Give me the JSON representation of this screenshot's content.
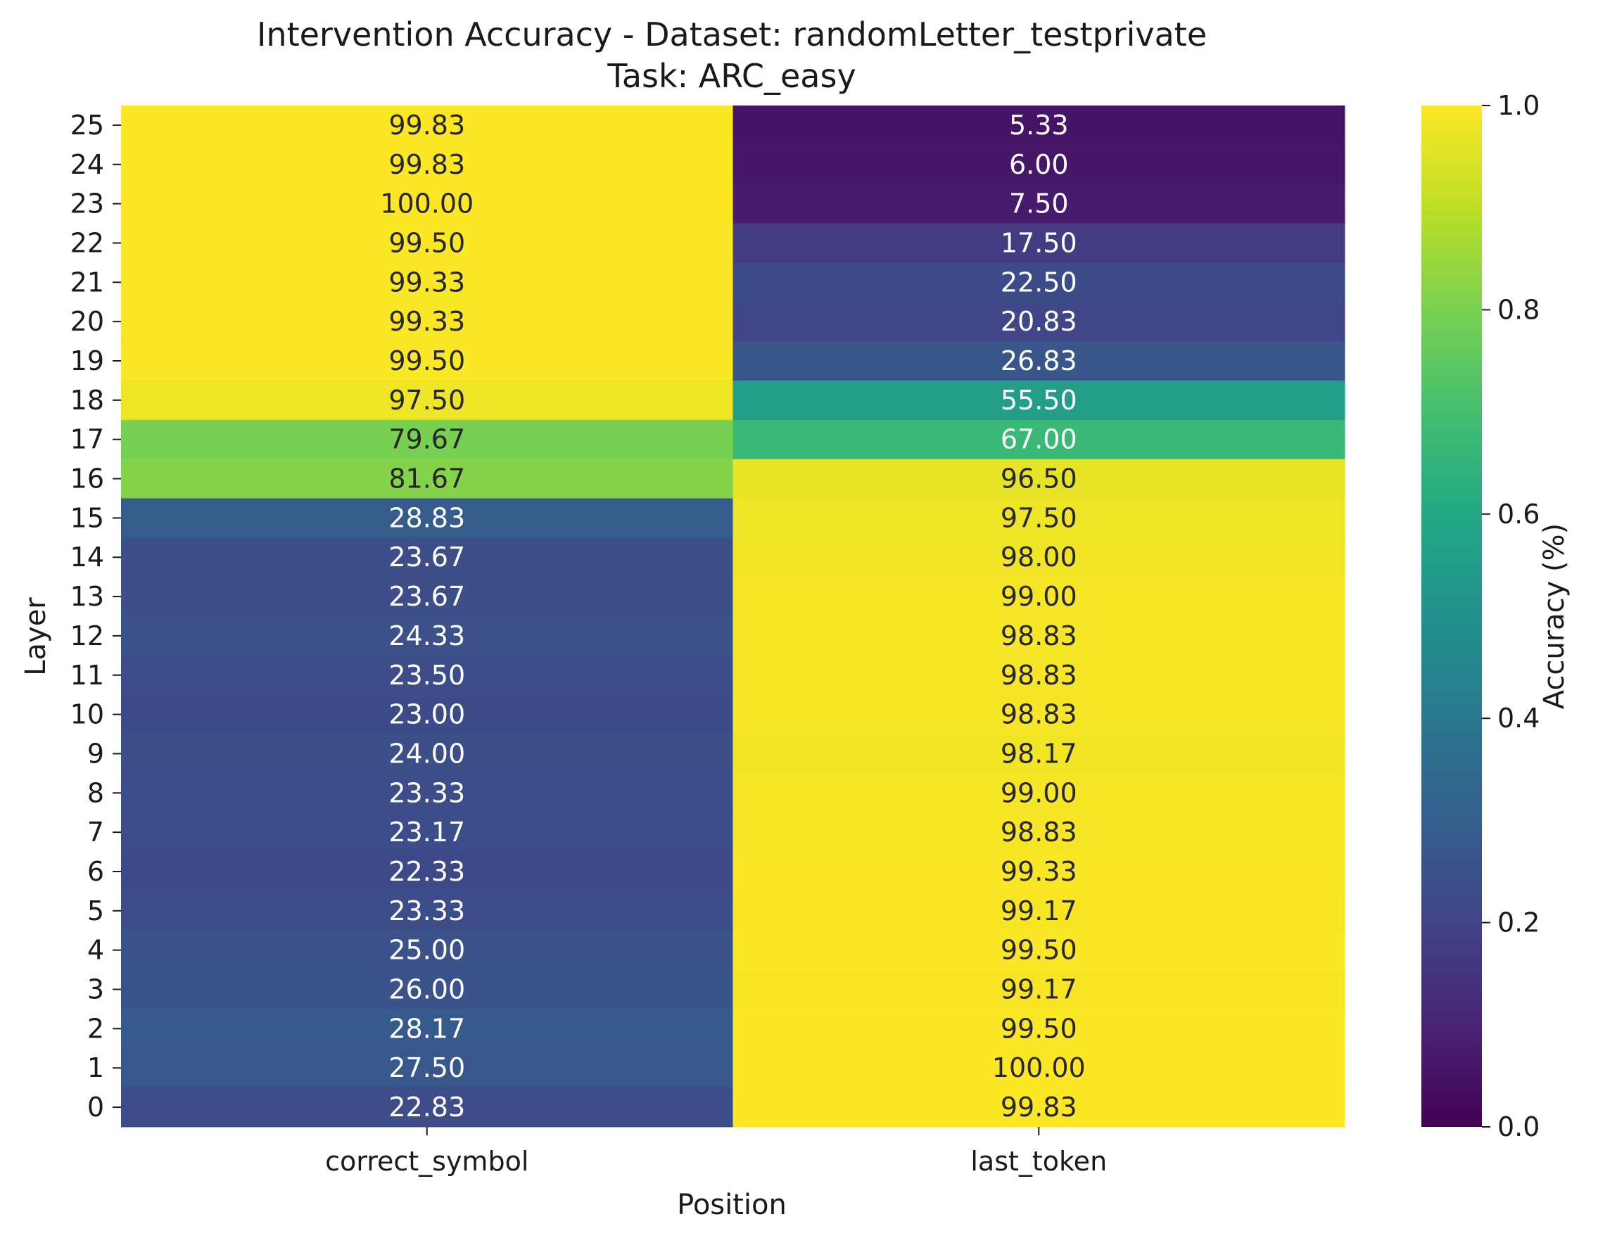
{
  "chart_data": {
    "type": "heatmap",
    "title_line1": "Intervention Accuracy - Dataset: randomLetter_testprivate",
    "title_line2": "Task: ARC_easy",
    "xlabel": "Position",
    "ylabel": "Layer",
    "columns": [
      "correct_symbol",
      "last_token"
    ],
    "layers": [
      25,
      24,
      23,
      22,
      21,
      20,
      19,
      18,
      17,
      16,
      15,
      14,
      13,
      12,
      11,
      10,
      9,
      8,
      7,
      6,
      5,
      4,
      3,
      2,
      1,
      0
    ],
    "layer_labels": [
      "25",
      "24",
      "23",
      "22",
      "21",
      "20",
      "19",
      "18",
      "17",
      "16",
      "15",
      "14",
      "13",
      "12",
      "11",
      "10",
      "9",
      "8",
      "7",
      "6",
      "5",
      "4",
      "3",
      "2",
      "1",
      "0"
    ],
    "values": [
      [
        99.83,
        5.33
      ],
      [
        99.83,
        6.0
      ],
      [
        100.0,
        7.5
      ],
      [
        99.5,
        17.5
      ],
      [
        99.33,
        22.5
      ],
      [
        99.33,
        20.83
      ],
      [
        99.5,
        26.83
      ],
      [
        97.5,
        55.5
      ],
      [
        79.67,
        67.0
      ],
      [
        81.67,
        96.5
      ],
      [
        28.83,
        97.5
      ],
      [
        23.67,
        98.0
      ],
      [
        23.67,
        99.0
      ],
      [
        24.33,
        98.83
      ],
      [
        23.5,
        98.83
      ],
      [
        23.0,
        98.83
      ],
      [
        24.0,
        98.17
      ],
      [
        23.33,
        99.0
      ],
      [
        23.17,
        98.83
      ],
      [
        22.33,
        99.33
      ],
      [
        23.33,
        99.17
      ],
      [
        25.0,
        99.5
      ],
      [
        26.0,
        99.17
      ],
      [
        28.17,
        99.5
      ],
      [
        27.5,
        100.0
      ],
      [
        22.83,
        99.83
      ]
    ],
    "value_labels": [
      [
        "99.83",
        "5.33"
      ],
      [
        "99.83",
        "6.00"
      ],
      [
        "100.00",
        "7.50"
      ],
      [
        "99.50",
        "17.50"
      ],
      [
        "99.33",
        "22.50"
      ],
      [
        "99.33",
        "20.83"
      ],
      [
        "99.50",
        "26.83"
      ],
      [
        "97.50",
        "55.50"
      ],
      [
        "79.67",
        "67.00"
      ],
      [
        "81.67",
        "96.50"
      ],
      [
        "28.83",
        "97.50"
      ],
      [
        "23.67",
        "98.00"
      ],
      [
        "23.67",
        "99.00"
      ],
      [
        "24.33",
        "98.83"
      ],
      [
        "23.50",
        "98.83"
      ],
      [
        "23.00",
        "98.83"
      ],
      [
        "24.00",
        "98.17"
      ],
      [
        "23.33",
        "99.00"
      ],
      [
        "23.17",
        "98.83"
      ],
      [
        "22.33",
        "99.33"
      ],
      [
        "23.33",
        "99.17"
      ],
      [
        "25.00",
        "99.50"
      ],
      [
        "26.00",
        "99.17"
      ],
      [
        "28.17",
        "99.50"
      ],
      [
        "27.50",
        "100.00"
      ],
      [
        "22.83",
        "99.83"
      ]
    ],
    "colorbar": {
      "label": "Accuracy (%)",
      "range": [
        0,
        1
      ],
      "ticks": [
        0.0,
        0.2,
        0.4,
        0.6,
        0.8,
        1.0
      ],
      "tick_labels": [
        "0.0",
        "0.2",
        "0.4",
        "0.6",
        "0.8",
        "1.0"
      ],
      "colormap": "viridis"
    }
  }
}
